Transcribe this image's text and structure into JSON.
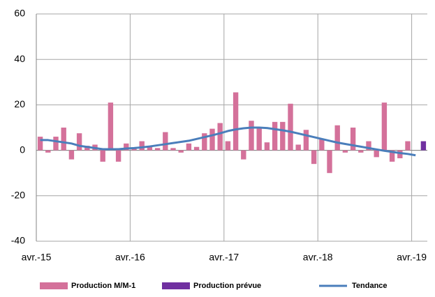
{
  "chart_data": {
    "type": "bar",
    "categories": [
      "avr.-15",
      null,
      null,
      null,
      null,
      null,
      null,
      null,
      null,
      null,
      null,
      null,
      "avr.-16",
      null,
      null,
      null,
      null,
      null,
      null,
      null,
      null,
      null,
      null,
      null,
      "avr.-17",
      null,
      null,
      null,
      null,
      null,
      null,
      null,
      null,
      null,
      null,
      null,
      "avr.-18",
      null,
      null,
      null,
      null,
      null,
      null,
      null,
      null,
      null,
      null,
      null,
      "avr.-19",
      null
    ],
    "series": [
      {
        "name": "Production M/M-1",
        "type": "bar",
        "color": "#d4719a",
        "values": [
          6,
          -1,
          6,
          10,
          -4,
          7.5,
          2,
          2.5,
          -5,
          21,
          -5,
          3,
          1,
          4,
          1.5,
          1,
          8,
          1,
          -1,
          3,
          1.5,
          7.5,
          9.5,
          12,
          4,
          25.5,
          -4,
          13,
          10,
          3.5,
          12.5,
          12.5,
          20.5,
          2.5,
          9,
          -6,
          5,
          -10,
          11,
          -1,
          10,
          -1,
          4,
          -3,
          21,
          -5,
          -3.5,
          4,
          null,
          null
        ]
      },
      {
        "name": "Production prévue",
        "type": "bar",
        "color": "#7030a0",
        "values": [
          null,
          null,
          null,
          null,
          null,
          null,
          null,
          null,
          null,
          null,
          null,
          null,
          null,
          null,
          null,
          null,
          null,
          null,
          null,
          null,
          null,
          null,
          null,
          null,
          null,
          null,
          null,
          null,
          null,
          null,
          null,
          null,
          null,
          null,
          null,
          null,
          null,
          null,
          null,
          null,
          null,
          null,
          null,
          null,
          null,
          null,
          null,
          null,
          null,
          4
        ]
      },
      {
        "name": "Tendance",
        "type": "line",
        "color": "#4a7ebb",
        "values": [
          4.5,
          4.5,
          4,
          3.5,
          3,
          2,
          1.5,
          1,
          0.5,
          0.5,
          0.5,
          0.8,
          1,
          1.3,
          1.7,
          2.2,
          2.7,
          3.2,
          3.7,
          4.2,
          5,
          5.8,
          6.6,
          7.5,
          8.5,
          9.2,
          9.7,
          10,
          10,
          9.8,
          9.3,
          8.8,
          8.2,
          7.4,
          6.6,
          5.8,
          5,
          4.2,
          3.4,
          2.8,
          2.2,
          1.6,
          1,
          0.4,
          -0.2,
          -0.7,
          -1.2,
          -1.6,
          -2.2,
          null
        ]
      }
    ],
    "ylim": [
      -40,
      60
    ],
    "yticks": [
      -40,
      -20,
      0,
      20,
      40,
      60
    ],
    "grid": true,
    "legend": "bottom"
  }
}
